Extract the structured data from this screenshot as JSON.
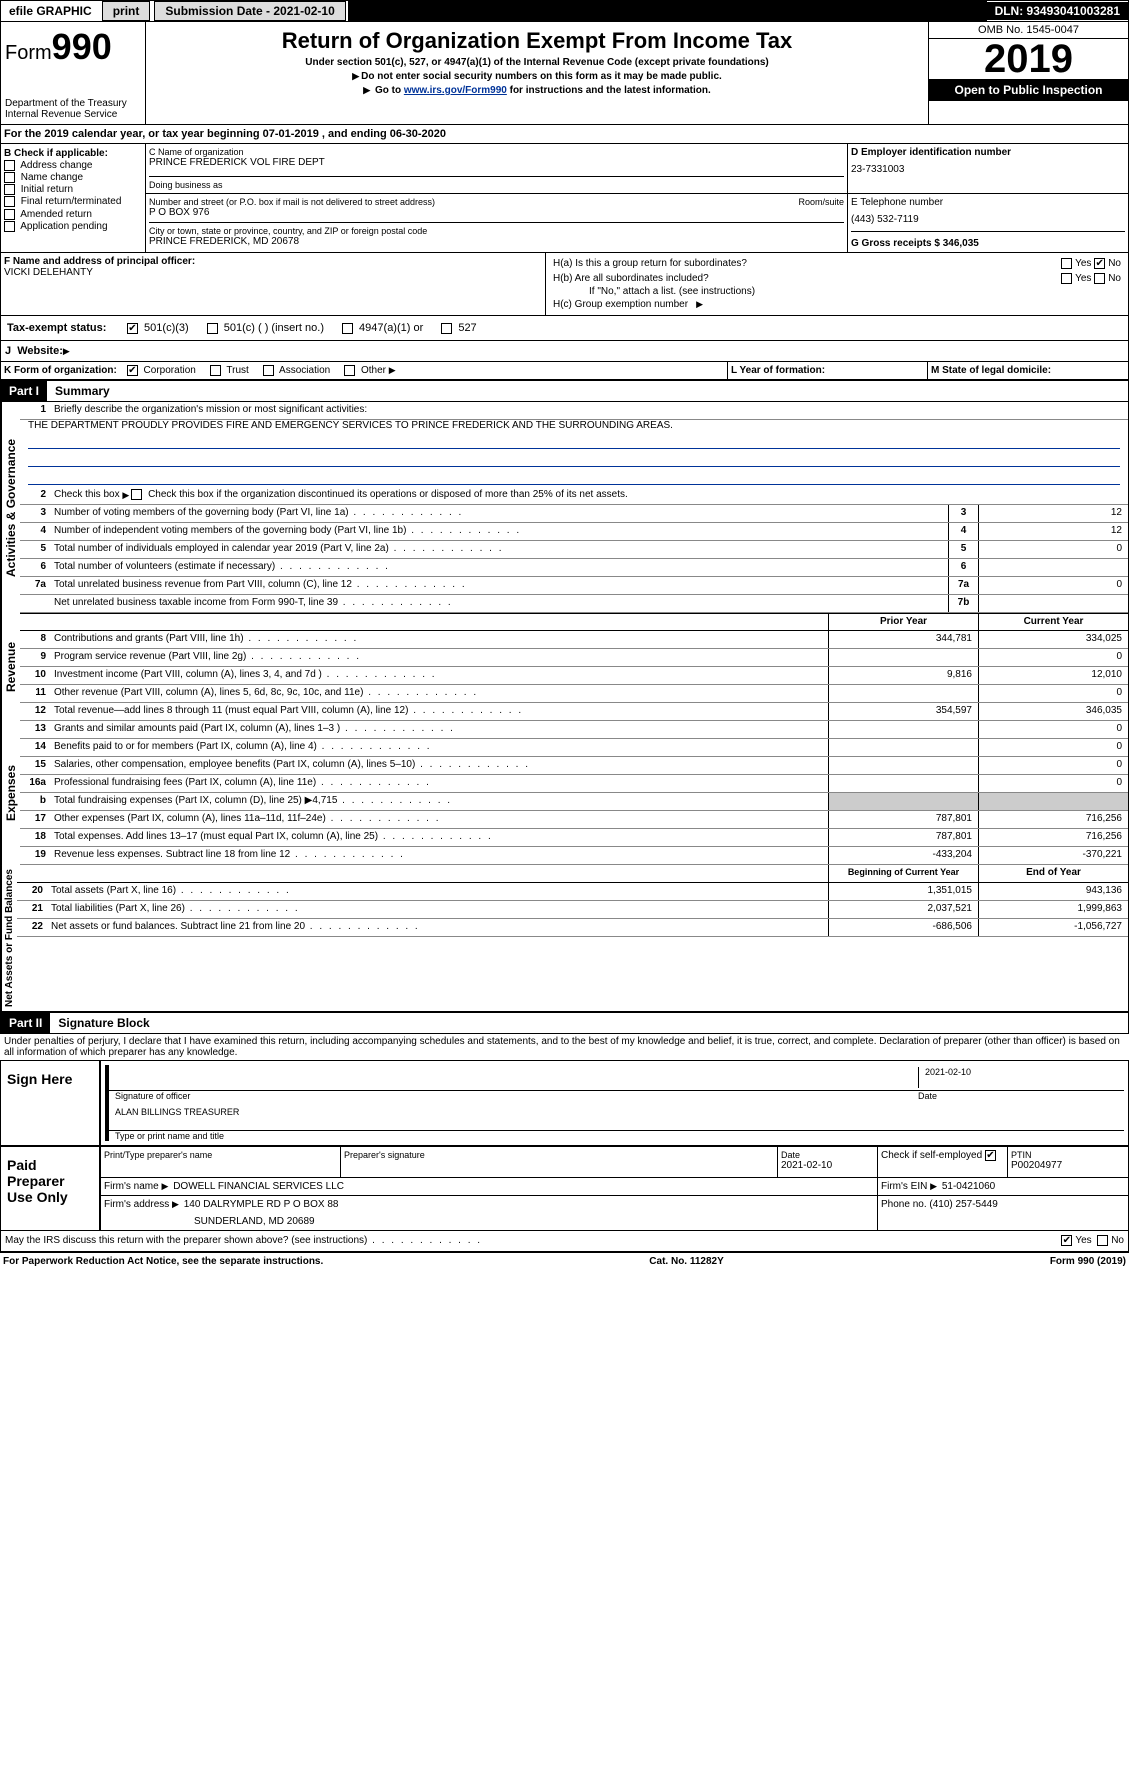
{
  "topbar": {
    "efile": "efile GRAPHIC",
    "print": "print",
    "subdate_label": "Submission Date - 2021-02-10",
    "dln": "DLN: 93493041003281"
  },
  "header": {
    "form_label": "Form",
    "form_num": "990",
    "dept": "Department of the Treasury\nInternal Revenue Service",
    "title": "Return of Organization Exempt From Income Tax",
    "line1": "Under section 501(c), 527, or 4947(a)(1) of the Internal Revenue Code (except private foundations)",
    "line2": "Do not enter social security numbers on this form as it may be made public.",
    "line3_a": "Go to ",
    "line3_link": "www.irs.gov/Form990",
    "line3_b": " for instructions and the latest information.",
    "omb": "OMB No. 1545-0047",
    "year": "2019",
    "open": "Open to Public Inspection"
  },
  "period": {
    "text": "For the 2019 calendar year, or tax year beginning 07-01-2019    , and ending 06-30-2020"
  },
  "boxB": {
    "label": "B Check if applicable:",
    "items": [
      "Address change",
      "Name change",
      "Initial return",
      "Final return/terminated",
      "Amended return",
      "Application pending"
    ]
  },
  "boxC": {
    "name_label": "C Name of organization",
    "name": "PRINCE FREDERICK VOL FIRE DEPT",
    "dba_label": "Doing business as",
    "addr_label": "Number and street (or P.O. box if mail is not delivered to street address)",
    "room_label": "Room/suite",
    "addr": "P O BOX 976",
    "city_label": "City or town, state or province, country, and ZIP or foreign postal code",
    "city": "PRINCE FREDERICK, MD  20678"
  },
  "boxD": {
    "label": "D Employer identification number",
    "val": "23-7331003"
  },
  "boxE": {
    "label": "E Telephone number",
    "val": "(443) 532-7119"
  },
  "boxG": {
    "label": "G Gross receipts $ 346,035"
  },
  "boxF": {
    "label": "F  Name and address of principal officer:",
    "val": "VICKI DELEHANTY"
  },
  "boxH": {
    "a": "H(a)  Is this a group return for subordinates?",
    "b": "H(b)  Are all subordinates included?",
    "b_note": "If \"No,\" attach a list. (see instructions)",
    "c": "H(c)  Group exemption number",
    "yes": "Yes",
    "no": "No"
  },
  "boxI": {
    "label": "Tax-exempt status:",
    "opts": [
      "501(c)(3)",
      "501(c) (  ) (insert no.)",
      "4947(a)(1) or",
      "527"
    ]
  },
  "boxJ": {
    "label": "Website:"
  },
  "boxK": {
    "label": "K Form of organization:",
    "opts": [
      "Corporation",
      "Trust",
      "Association",
      "Other"
    ]
  },
  "boxL": {
    "label": "L Year of formation:"
  },
  "boxM": {
    "label": "M State of legal domicile:"
  },
  "part1": {
    "hdr": "Part I",
    "title": "Summary",
    "vlabel_gov": "Activities & Governance",
    "vlabel_rev": "Revenue",
    "vlabel_exp": "Expenses",
    "vlabel_net": "Net Assets or Fund Balances",
    "l1": "Briefly describe the organization's mission or most significant activities:",
    "mission": "THE DEPARTMENT PROUDLY PROVIDES FIRE AND EMERGENCY SERVICES TO PRINCE FREDERICK AND THE SURROUNDING AREAS.",
    "l2": "Check this box  if the organization discontinued its operations or disposed of more than 25% of its net assets.",
    "lines_gov": [
      {
        "n": "3",
        "d": "Number of voting members of the governing body (Part VI, line 1a)",
        "b": "3",
        "v": "12"
      },
      {
        "n": "4",
        "d": "Number of independent voting members of the governing body (Part VI, line 1b)",
        "b": "4",
        "v": "12"
      },
      {
        "n": "5",
        "d": "Total number of individuals employed in calendar year 2019 (Part V, line 2a)",
        "b": "5",
        "v": "0"
      },
      {
        "n": "6",
        "d": "Total number of volunteers (estimate if necessary)",
        "b": "6",
        "v": ""
      },
      {
        "n": "7a",
        "d": "Total unrelated business revenue from Part VIII, column (C), line 12",
        "b": "7a",
        "v": "0"
      },
      {
        "n": "",
        "d": "Net unrelated business taxable income from Form 990-T, line 39",
        "b": "7b",
        "v": ""
      }
    ],
    "col_prior": "Prior Year",
    "col_curr": "Current Year",
    "lines_rev": [
      {
        "n": "8",
        "d": "Contributions and grants (Part VIII, line 1h)",
        "p": "344,781",
        "c": "334,025"
      },
      {
        "n": "9",
        "d": "Program service revenue (Part VIII, line 2g)",
        "p": "",
        "c": "0"
      },
      {
        "n": "10",
        "d": "Investment income (Part VIII, column (A), lines 3, 4, and 7d )",
        "p": "9,816",
        "c": "12,010"
      },
      {
        "n": "11",
        "d": "Other revenue (Part VIII, column (A), lines 5, 6d, 8c, 9c, 10c, and 11e)",
        "p": "",
        "c": "0"
      },
      {
        "n": "12",
        "d": "Total revenue—add lines 8 through 11 (must equal Part VIII, column (A), line 12)",
        "p": "354,597",
        "c": "346,035"
      }
    ],
    "lines_exp": [
      {
        "n": "13",
        "d": "Grants and similar amounts paid (Part IX, column (A), lines 1–3 )",
        "p": "",
        "c": "0"
      },
      {
        "n": "14",
        "d": "Benefits paid to or for members (Part IX, column (A), line 4)",
        "p": "",
        "c": "0"
      },
      {
        "n": "15",
        "d": "Salaries, other compensation, employee benefits (Part IX, column (A), lines 5–10)",
        "p": "",
        "c": "0"
      },
      {
        "n": "16a",
        "d": "Professional fundraising fees (Part IX, column (A), line 11e)",
        "p": "",
        "c": "0"
      },
      {
        "n": "b",
        "d": "Total fundraising expenses (Part IX, column (D), line 25) ▶4,715",
        "p": "SHADE",
        "c": "SHADE"
      },
      {
        "n": "17",
        "d": "Other expenses (Part IX, column (A), lines 11a–11d, 11f–24e)",
        "p": "787,801",
        "c": "716,256"
      },
      {
        "n": "18",
        "d": "Total expenses. Add lines 13–17 (must equal Part IX, column (A), line 25)",
        "p": "787,801",
        "c": "716,256"
      },
      {
        "n": "19",
        "d": "Revenue less expenses. Subtract line 18 from line 12",
        "p": "-433,204",
        "c": "-370,221"
      }
    ],
    "col_beg": "Beginning of Current Year",
    "col_end": "End of Year",
    "lines_net": [
      {
        "n": "20",
        "d": "Total assets (Part X, line 16)",
        "p": "1,351,015",
        "c": "943,136"
      },
      {
        "n": "21",
        "d": "Total liabilities (Part X, line 26)",
        "p": "2,037,521",
        "c": "1,999,863"
      },
      {
        "n": "22",
        "d": "Net assets or fund balances. Subtract line 21 from line 20",
        "p": "-686,506",
        "c": "-1,056,727"
      }
    ]
  },
  "part2": {
    "hdr": "Part II",
    "title": "Signature Block",
    "perjury": "Under penalties of perjury, I declare that I have examined this return, including accompanying schedules and statements, and to the best of my knowledge and belief, it is true, correct, and complete. Declaration of preparer (other than officer) is based on all information of which preparer has any knowledge.",
    "sign_here": "Sign Here",
    "sig_date": "2021-02-10",
    "sig_off": "Signature of officer",
    "sig_date_lbl": "Date",
    "sig_name": "ALAN BILLINGS TREASURER",
    "sig_name_lbl": "Type or print name and title",
    "paid": "Paid Preparer Use Only",
    "prep_name_lbl": "Print/Type preparer's name",
    "prep_sig_lbl": "Preparer's signature",
    "prep_date_lbl": "Date",
    "prep_date": "2021-02-10",
    "prep_check": "Check  if self-employed",
    "ptin_lbl": "PTIN",
    "ptin": "P00204977",
    "firm_lbl": "Firm's name",
    "firm": "DOWELL FINANCIAL SERVICES LLC",
    "ein_lbl": "Firm's EIN",
    "ein": "51-0421060",
    "addr_lbl": "Firm's address",
    "addr": "140 DALRYMPLE RD P O BOX 88",
    "addr2": "SUNDERLAND, MD  20689",
    "phone_lbl": "Phone no.",
    "phone": "(410) 257-5449",
    "discuss": "May the IRS discuss this return with the preparer shown above? (see instructions)",
    "yes": "Yes",
    "no": "No"
  },
  "footer": {
    "pra": "For Paperwork Reduction Act Notice, see the separate instructions.",
    "cat": "Cat. No. 11282Y",
    "form": "Form 990 (2019)"
  }
}
